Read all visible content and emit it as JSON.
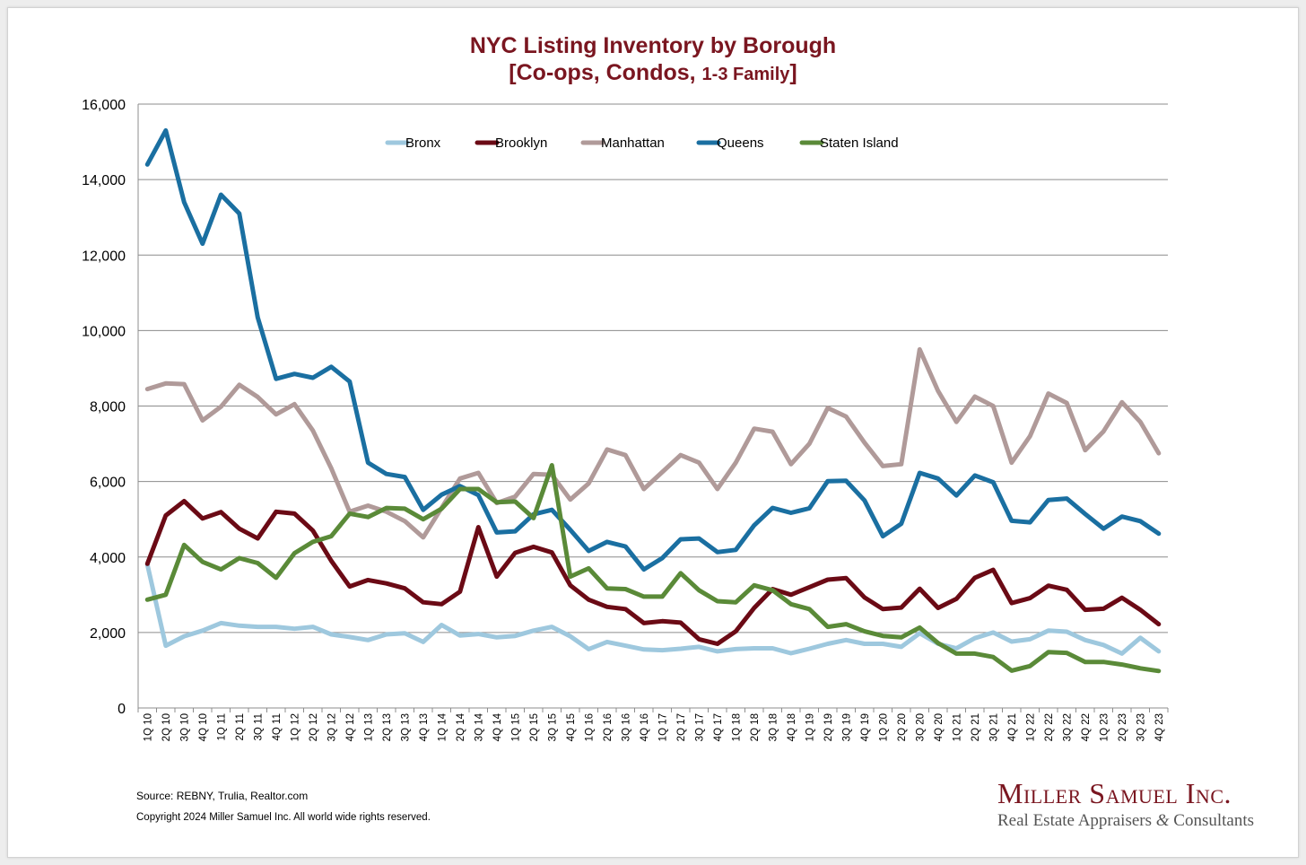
{
  "chart_data": {
    "type": "line",
    "title": "NYC Listing Inventory by Borough",
    "subtitle_prefix": "[Co-ops, Condos, ",
    "subtitle_small": "1-3 Family",
    "subtitle_suffix": "]",
    "xlabel": "",
    "ylabel": "",
    "ylim": [
      0,
      16000
    ],
    "yticks": [
      0,
      2000,
      4000,
      6000,
      8000,
      10000,
      12000,
      14000,
      16000
    ],
    "ytick_labels": [
      "0",
      "2,000",
      "4,000",
      "6,000",
      "8,000",
      "10,000",
      "12,000",
      "14,000",
      "16,000"
    ],
    "grid": "horizontal",
    "legend_position": "top-center",
    "categories": [
      "1Q 10",
      "2Q 10",
      "3Q 10",
      "4Q 10",
      "1Q 11",
      "2Q 11",
      "3Q 11",
      "4Q 11",
      "1Q 12",
      "2Q 12",
      "3Q 12",
      "4Q 12",
      "1Q 13",
      "2Q 13",
      "3Q 13",
      "4Q 13",
      "1Q 14",
      "2Q 14",
      "3Q 14",
      "4Q 14",
      "1Q 15",
      "2Q 15",
      "3Q 15",
      "4Q 15",
      "1Q 16",
      "2Q 16",
      "3Q 16",
      "4Q 16",
      "1Q 17",
      "2Q 17",
      "3Q 17",
      "4Q 17",
      "1Q 18",
      "2Q 18",
      "3Q 18",
      "4Q 18",
      "1Q 19",
      "2Q 19",
      "3Q 19",
      "4Q 19",
      "1Q 20",
      "2Q 20",
      "3Q 20",
      "4Q 20",
      "1Q 21",
      "2Q 21",
      "3Q 21",
      "4Q 21",
      "1Q 22",
      "2Q 22",
      "3Q 22",
      "4Q 22",
      "1Q 23",
      "2Q 23",
      "3Q 23",
      "4Q 23"
    ],
    "series": [
      {
        "name": "Bronx",
        "color": "#9ec8de",
        "values": [
          3800,
          1650,
          1900,
          2050,
          2250,
          2180,
          2150,
          2150,
          2100,
          2150,
          1950,
          1880,
          1800,
          1950,
          1980,
          1750,
          2200,
          1920,
          1960,
          1870,
          1910,
          2050,
          2150,
          1900,
          1560,
          1750,
          1650,
          1550,
          1530,
          1570,
          1620,
          1500,
          1560,
          1580,
          1580,
          1450,
          1570,
          1700,
          1800,
          1700,
          1700,
          1620,
          1980,
          1700,
          1580,
          1850,
          2000,
          1760,
          1820,
          2050,
          2020,
          1800,
          1670,
          1440,
          1860,
          1500
        ]
      },
      {
        "name": "Brooklyn",
        "color": "#6b0a15",
        "values": [
          3820,
          5100,
          5480,
          5020,
          5190,
          4750,
          4490,
          5200,
          5150,
          4700,
          3900,
          3220,
          3390,
          3300,
          3170,
          2800,
          2750,
          3080,
          4790,
          3480,
          4110,
          4270,
          4120,
          3250,
          2870,
          2680,
          2620,
          2250,
          2300,
          2260,
          1820,
          1700,
          2030,
          2650,
          3150,
          3000,
          3200,
          3400,
          3440,
          2930,
          2620,
          2660,
          3160,
          2650,
          2890,
          3450,
          3660,
          2780,
          2910,
          3240,
          3130,
          2600,
          2630,
          2920,
          2600,
          2220
        ]
      },
      {
        "name": "Manhattan",
        "color": "#b09a99",
        "values": [
          8450,
          8600,
          8580,
          7620,
          7980,
          8560,
          8240,
          7780,
          8050,
          7350,
          6350,
          5200,
          5360,
          5200,
          4950,
          4520,
          5300,
          6080,
          6230,
          5430,
          5600,
          6200,
          6180,
          5520,
          5950,
          6850,
          6700,
          5800,
          6250,
          6700,
          6500,
          5800,
          6500,
          7400,
          7320,
          6460,
          7000,
          7950,
          7720,
          7030,
          6410,
          6460,
          9500,
          8400,
          7580,
          8250,
          8000,
          6500,
          7200,
          8330,
          8080,
          6830,
          7330,
          8100,
          7580,
          6750
        ]
      },
      {
        "name": "Queens",
        "color": "#1a6fa1",
        "values": [
          14400,
          15300,
          13400,
          12300,
          13600,
          13100,
          10350,
          8720,
          8850,
          8750,
          9040,
          8650,
          6500,
          6200,
          6120,
          5250,
          5650,
          5880,
          5640,
          4650,
          4680,
          5130,
          5250,
          4720,
          4160,
          4400,
          4280,
          3670,
          3970,
          4470,
          4490,
          4130,
          4190,
          4840,
          5300,
          5170,
          5290,
          6010,
          6020,
          5500,
          4550,
          4880,
          6230,
          6080,
          5630,
          6160,
          5980,
          4960,
          4920,
          5510,
          5550,
          5140,
          4750,
          5070,
          4950,
          4620
        ]
      },
      {
        "name": "Staten Island",
        "color": "#5a8a38",
        "values": [
          2870,
          3000,
          4320,
          3870,
          3670,
          3970,
          3840,
          3450,
          4100,
          4400,
          4550,
          5150,
          5060,
          5300,
          5280,
          5000,
          5280,
          5800,
          5800,
          5450,
          5470,
          5030,
          6430,
          3480,
          3700,
          3170,
          3150,
          2950,
          2950,
          3570,
          3120,
          2830,
          2800,
          3250,
          3120,
          2750,
          2620,
          2150,
          2220,
          2030,
          1910,
          1870,
          2130,
          1720,
          1440,
          1440,
          1350,
          990,
          1110,
          1480,
          1460,
          1220,
          1220,
          1150,
          1050,
          980
        ]
      }
    ]
  },
  "footer": {
    "source": "Source: REBNY, Trulia, Realtor.com",
    "copyright": "Copyright 2024 Miller Samuel Inc.  All world wide rights reserved."
  },
  "logo": {
    "name": "Miller Samuel Inc.",
    "tagline_part1": "Real Estate Appraisers ",
    "tagline_amp": "&",
    "tagline_part2": " Consultants"
  }
}
